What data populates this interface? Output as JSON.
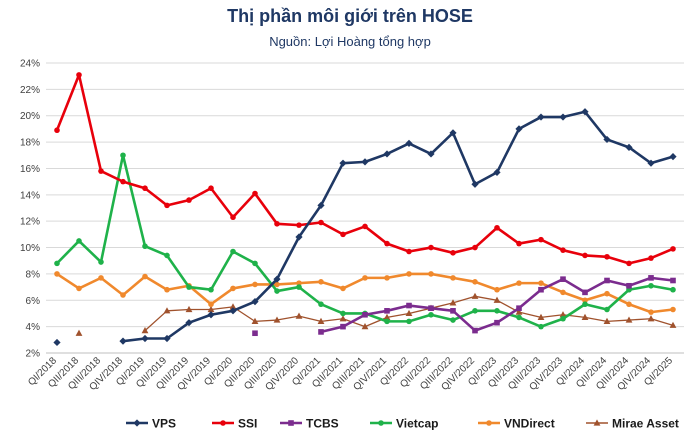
{
  "chart_data": {
    "type": "line",
    "title": "Thị phần môi giới trên HOSE",
    "subtitle": "Nguồn: Lợi Hoàng tổng hợp",
    "xlabel": "",
    "ylabel": "",
    "ylim": [
      2,
      24
    ],
    "yticks": [
      "2%",
      "4%",
      "6%",
      "8%",
      "10%",
      "12%",
      "14%",
      "16%",
      "18%",
      "20%",
      "22%",
      "24%"
    ],
    "grid": true,
    "legend_position": "bottom",
    "categories": [
      "QI/2018",
      "QII/2018",
      "QIII/2018",
      "QIV/2018",
      "QI/2019",
      "QII/2019",
      "QIII/2019",
      "QIV/2019",
      "QI/2020",
      "QII/2020",
      "QIII/2020",
      "QIV/2020",
      "QI/2021",
      "QII/2021",
      "QIII/2021",
      "QIV/2021",
      "QI/2022",
      "QII/2022",
      "QIII/2022",
      "QIV/2022",
      "QI/2023",
      "QII/2023",
      "QIII/2023",
      "QIV/2023",
      "QI/2024",
      "QII/2024",
      "QIII/2024",
      "QIV/2024",
      "QI/2025"
    ],
    "series": [
      {
        "name": "VPS",
        "color": "#1f3864",
        "marker": "diamond",
        "values": [
          2.8,
          null,
          null,
          2.9,
          3.1,
          3.1,
          4.3,
          4.9,
          5.2,
          5.9,
          7.6,
          10.8,
          13.2,
          16.4,
          16.5,
          17.1,
          17.9,
          17.1,
          18.7,
          14.8,
          15.7,
          19.0,
          19.9,
          19.9,
          20.3,
          18.2,
          17.6,
          16.4,
          16.9
        ]
      },
      {
        "name": "SSI",
        "color": "#e8000b",
        "marker": "circle",
        "values": [
          18.9,
          23.1,
          15.8,
          15.0,
          14.5,
          13.2,
          13.6,
          14.5,
          12.3,
          14.1,
          11.8,
          11.7,
          11.9,
          11.0,
          11.6,
          10.3,
          9.7,
          10.0,
          9.6,
          10.0,
          11.5,
          10.3,
          10.6,
          9.8,
          9.4,
          9.3,
          8.8,
          9.2,
          9.9
        ]
      },
      {
        "name": "TCBS",
        "color": "#7b2c8e",
        "marker": "square",
        "values": [
          null,
          null,
          null,
          null,
          null,
          null,
          null,
          null,
          null,
          3.5,
          null,
          null,
          3.6,
          4.0,
          4.9,
          5.2,
          5.6,
          5.4,
          5.2,
          3.7,
          4.3,
          5.4,
          6.8,
          7.6,
          6.6,
          7.5,
          7.1,
          7.7,
          7.5
        ]
      },
      {
        "name": "Vietcap",
        "color": "#1fb24a",
        "marker": "circle",
        "values": [
          8.8,
          10.5,
          8.9,
          17.0,
          10.1,
          9.4,
          7.0,
          6.8,
          9.7,
          8.8,
          6.7,
          7.0,
          5.7,
          5.0,
          5.0,
          4.4,
          4.4,
          4.9,
          4.5,
          5.2,
          5.2,
          4.7,
          4.0,
          4.6,
          5.7,
          5.3,
          6.8,
          7.1,
          6.8
        ]
      },
      {
        "name": "VNDirect",
        "color": "#f0892d",
        "marker": "circle",
        "values": [
          8.0,
          6.9,
          7.7,
          6.4,
          7.8,
          6.8,
          7.1,
          5.7,
          6.9,
          7.2,
          7.2,
          7.3,
          7.4,
          6.9,
          7.7,
          7.7,
          8.0,
          8.0,
          7.7,
          7.4,
          6.8,
          7.3,
          7.3,
          6.6,
          6.0,
          6.5,
          5.7,
          5.1,
          5.3
        ]
      },
      {
        "name": "Mirae Asset",
        "color": "#a0522d",
        "marker": "triangle",
        "values": [
          null,
          3.5,
          null,
          null,
          3.7,
          5.2,
          5.3,
          5.3,
          5.5,
          4.4,
          4.5,
          4.8,
          4.4,
          4.6,
          4.0,
          4.7,
          5.0,
          5.4,
          5.8,
          6.3,
          6.0,
          5.1,
          4.7,
          4.9,
          4.7,
          4.4,
          4.5,
          4.6,
          4.1
        ]
      }
    ]
  }
}
